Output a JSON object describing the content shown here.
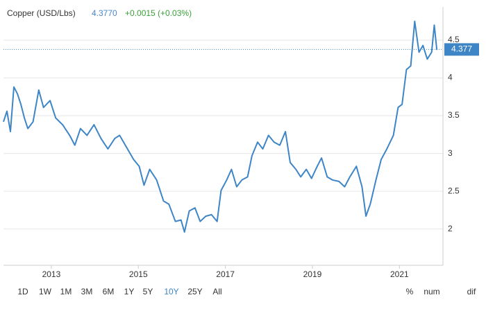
{
  "chart_data": {
    "type": "line",
    "title": "Copper (USD/Lbs)",
    "price": "4.3770",
    "change": "+0.0015 (+0.03%)",
    "current_value": 4.377,
    "x": [
      2011.9,
      2011.98,
      2012.06,
      2012.14,
      2012.22,
      2012.3,
      2012.38,
      2012.46,
      2012.58,
      2012.71,
      2012.82,
      2012.97,
      2013.1,
      2013.26,
      2013.42,
      2013.54,
      2013.67,
      2013.82,
      2013.98,
      2014.14,
      2014.3,
      2014.46,
      2014.57,
      2014.7,
      2014.89,
      2015.02,
      2015.13,
      2015.26,
      2015.42,
      2015.58,
      2015.7,
      2015.85,
      2015.98,
      2016.06,
      2016.17,
      2016.3,
      2016.42,
      2016.55,
      2016.68,
      2016.81,
      2016.9,
      2017.03,
      2017.14,
      2017.26,
      2017.38,
      2017.51,
      2017.61,
      2017.74,
      2017.86,
      2017.99,
      2018.12,
      2018.25,
      2018.38,
      2018.49,
      2018.62,
      2018.73,
      2018.86,
      2018.98,
      2019.11,
      2019.21,
      2019.34,
      2019.46,
      2019.61,
      2019.74,
      2019.86,
      2020.01,
      2020.14,
      2020.23,
      2020.33,
      2020.46,
      2020.58,
      2020.71,
      2020.86,
      2020.97,
      2021.06,
      2021.16,
      2021.26,
      2021.35,
      2021.45,
      2021.54,
      2021.64,
      2021.74,
      2021.8,
      2021.86
    ],
    "series": [
      {
        "name": "Copper",
        "color": "#3d85c6",
        "values": [
          3.42,
          3.56,
          3.29,
          3.88,
          3.79,
          3.65,
          3.47,
          3.33,
          3.42,
          3.84,
          3.61,
          3.7,
          3.47,
          3.38,
          3.24,
          3.11,
          3.33,
          3.24,
          3.38,
          3.2,
          3.06,
          3.2,
          3.24,
          3.11,
          2.92,
          2.83,
          2.58,
          2.79,
          2.65,
          2.37,
          2.33,
          2.1,
          2.12,
          1.96,
          2.24,
          2.28,
          2.1,
          2.17,
          2.19,
          2.1,
          2.51,
          2.65,
          2.79,
          2.56,
          2.65,
          2.69,
          2.97,
          3.15,
          3.06,
          3.24,
          3.15,
          3.11,
          3.29,
          2.88,
          2.79,
          2.69,
          2.79,
          2.67,
          2.83,
          2.94,
          2.69,
          2.65,
          2.63,
          2.56,
          2.69,
          2.83,
          2.56,
          2.17,
          2.33,
          2.65,
          2.92,
          3.06,
          3.24,
          3.61,
          3.65,
          4.11,
          4.16,
          4.75,
          4.34,
          4.43,
          4.25,
          4.34,
          4.7,
          4.37
        ]
      }
    ],
    "xlim": [
      2011.9,
      2022.0
    ],
    "xticks": [
      2013,
      2015,
      2017,
      2019,
      2021
    ],
    "ylim": [
      1.52,
      4.94
    ],
    "yticks": [
      2,
      2.5,
      3,
      3.5,
      4,
      4.5
    ],
    "grid": true,
    "ranges": [
      "1D",
      "1W",
      "1M",
      "3M",
      "6M",
      "1Y",
      "5Y",
      "10Y",
      "25Y",
      "All"
    ],
    "selected_range": "10Y",
    "modes": [
      "%",
      "num",
      "dif"
    ]
  }
}
